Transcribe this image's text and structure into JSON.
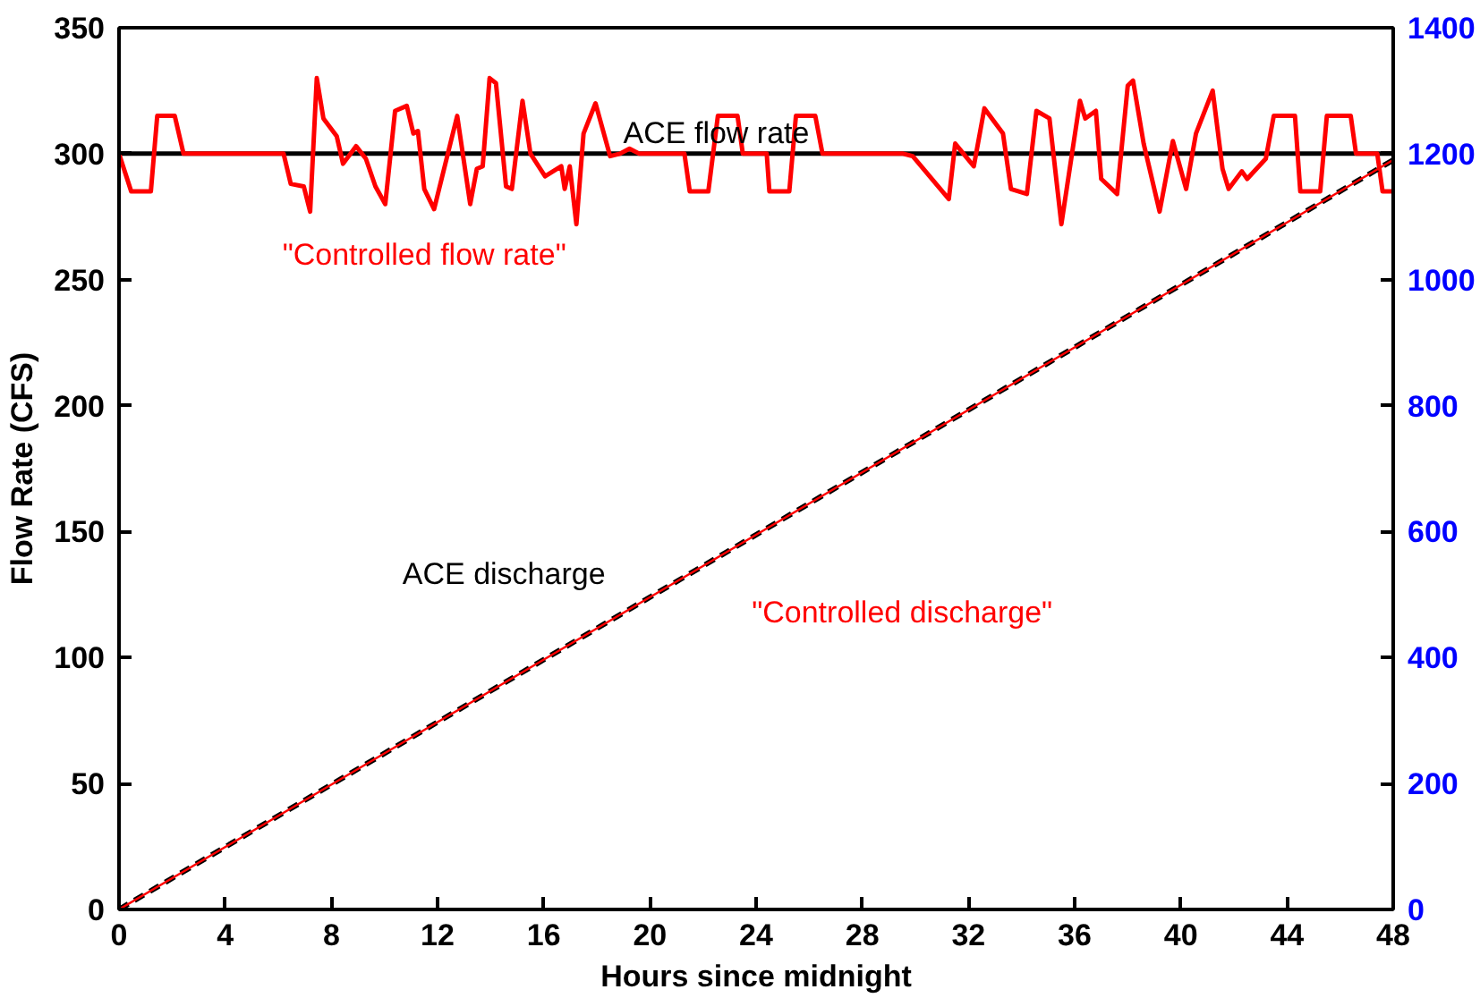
{
  "chart_data": {
    "type": "line",
    "xlabel": "Hours since midnight",
    "ylabel": "Flow Rate (CFS)",
    "xlim": [
      0,
      48
    ],
    "xticks": [
      0,
      4,
      8,
      12,
      16,
      20,
      24,
      28,
      32,
      36,
      40,
      44,
      48
    ],
    "ylim": [
      0,
      350
    ],
    "yticks": [
      0,
      50,
      100,
      150,
      200,
      250,
      300,
      350
    ],
    "y2lim": [
      0,
      1400
    ],
    "y2ticks": [
      0,
      200,
      400,
      600,
      800,
      1000,
      1200,
      1400
    ],
    "grid": false,
    "marker": "none",
    "series": [
      {
        "name": "ACE flow rate",
        "color": "#000000",
        "x": [
          0,
          48
        ],
        "values": [
          300,
          300
        ]
      },
      {
        "name": "\"Controlled flow rate\"",
        "color": "#ff0000",
        "x": [
          0,
          0.46,
          1.2,
          1.44,
          2.1,
          2.43,
          6.2,
          6.47,
          6.96,
          7.2,
          7.45,
          7.7,
          8.2,
          8.44,
          8.93,
          9.3,
          9.66,
          10.03,
          10.4,
          10.84,
          11.09,
          11.26,
          11.5,
          11.87,
          12.74,
          13.23,
          13.48,
          13.7,
          13.96,
          14.2,
          14.58,
          14.8,
          15.2,
          15.5,
          16.05,
          16.66,
          16.79,
          16.98,
          17.23,
          17.5,
          17.95,
          18.5,
          18.87,
          19.23,
          19.6,
          21.3,
          21.5,
          22.2,
          22.56,
          23.3,
          23.5,
          24.4,
          24.5,
          25.25,
          25.5,
          26.23,
          26.5,
          29.54,
          29.9,
          31.26,
          31.5,
          32.2,
          32.6,
          33.3,
          33.6,
          34.2,
          34.56,
          35.05,
          35.5,
          36.2,
          36.4,
          36.8,
          37.0,
          37.6,
          38.0,
          38.2,
          38.6,
          39.2,
          39.7,
          40.2,
          40.57,
          41.2,
          41.57,
          41.8,
          42.3,
          42.5,
          43.2,
          43.5,
          44.3,
          44.5,
          45.25,
          45.5,
          46.4,
          46.6,
          47.4,
          47.6,
          48
        ],
        "values": [
          300,
          285,
          285,
          315,
          315,
          300,
          300,
          288,
          287,
          277,
          330,
          314,
          307,
          296,
          303,
          298,
          287,
          280,
          317,
          319,
          308,
          309,
          286,
          278,
          315,
          280,
          294,
          295,
          330,
          328,
          287,
          286,
          321,
          300,
          291,
          295,
          286,
          295,
          272,
          308,
          320,
          299,
          300,
          302,
          300,
          300,
          285,
          285,
          315,
          315,
          300,
          300,
          285,
          285,
          315,
          315,
          300,
          300,
          299,
          282,
          304,
          295,
          318,
          308,
          286,
          284,
          317,
          314,
          272,
          321,
          314,
          317,
          290,
          284,
          327,
          329,
          304,
          277,
          305,
          286,
          308,
          325,
          294,
          286,
          293,
          290,
          298,
          315,
          315,
          285,
          285,
          315,
          315,
          300,
          300,
          285,
          285
        ]
      },
      {
        "name": "ACE discharge",
        "color": "#000000",
        "axis": "y2",
        "line_style": "dashed",
        "x": [
          0,
          48
        ],
        "values": [
          0,
          1190
        ]
      },
      {
        "name": "\"Controlled discharge\"",
        "color": "#ff0000",
        "axis": "y2",
        "x": [
          0,
          48
        ],
        "values": [
          0,
          1190
        ]
      }
    ]
  }
}
